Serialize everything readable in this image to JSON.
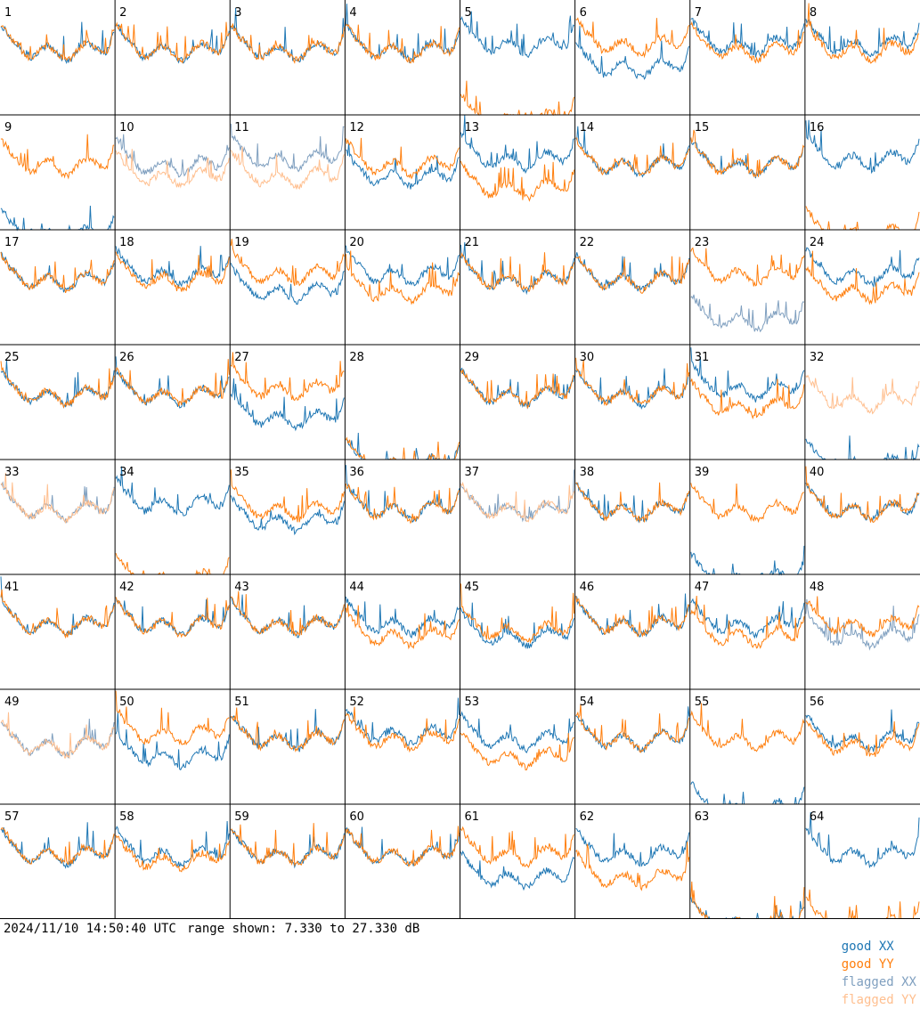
{
  "timestamp": "2024/11/10 14:50:40 UTC",
  "range_text": "range shown: 7.330 to 27.330 dB",
  "legend": [
    {
      "label": "good XX",
      "color": "#1f77b4"
    },
    {
      "label": "good YY",
      "color": "#ff7f0e"
    },
    {
      "label": "flagged XX",
      "color": "#7f9fbf"
    },
    {
      "label": "flagged YY",
      "color": "#ffbf8f"
    }
  ],
  "colors": {
    "good_xx": "#1f77b4",
    "good_yy": "#ff7f0e",
    "flagged_xx": "#7f9fbf",
    "flagged_yy": "#ffbf8f",
    "grid_line": "#000000"
  },
  "chart_data": {
    "type": "line",
    "ylim": [
      7.33,
      27.33
    ],
    "units": "dB",
    "series_names": [
      "good XX",
      "good YY",
      "flagged XX",
      "flagged YY"
    ],
    "panels": [
      {
        "label": "1",
        "xx": "good",
        "yy": "good",
        "xx_level": 20,
        "yy_level": 20
      },
      {
        "label": "2",
        "xx": "good",
        "yy": "good",
        "xx_level": 20,
        "yy_level": 20
      },
      {
        "label": "3",
        "xx": "good",
        "yy": "good",
        "xx_level": 20,
        "yy_level": 20
      },
      {
        "label": "4",
        "xx": "good",
        "yy": "good",
        "xx_level": 20,
        "yy_level": 20
      },
      {
        "label": "5",
        "xx": "good",
        "yy": "good",
        "xx_level": 21,
        "yy_level": 8
      },
      {
        "label": "6",
        "xx": "good",
        "yy": "good",
        "xx_level": 17,
        "yy_level": 21
      },
      {
        "label": "7",
        "xx": "good",
        "yy": "good",
        "xx_level": 21,
        "yy_level": 20
      },
      {
        "label": "8",
        "xx": "good",
        "yy": "good",
        "xx_level": 21,
        "yy_level": 20
      },
      {
        "label": "9",
        "xx": "good",
        "yy": "good",
        "xx_level": 8,
        "yy_level": 20
      },
      {
        "label": "10",
        "xx": "flagged",
        "yy": "flagged",
        "xx_level": 20,
        "yy_level": 18
      },
      {
        "label": "11",
        "xx": "flagged",
        "yy": "flagged",
        "xx_level": 21,
        "yy_level": 18
      },
      {
        "label": "12",
        "xx": "good",
        "yy": "good",
        "xx_level": 18,
        "yy_level": 20
      },
      {
        "label": "13",
        "xx": "good",
        "yy": "good",
        "xx_level": 21,
        "yy_level": 16
      },
      {
        "label": "14",
        "xx": "good",
        "yy": "good",
        "xx_level": 20,
        "yy_level": 20
      },
      {
        "label": "15",
        "xx": "good",
        "yy": "good",
        "xx_level": 20,
        "yy_level": 20
      },
      {
        "label": "16",
        "xx": "good",
        "yy": "good",
        "xx_level": 21,
        "yy_level": 8
      },
      {
        "label": "17",
        "xx": "good",
        "yy": "good",
        "xx_level": 20,
        "yy_level": 20
      },
      {
        "label": "18",
        "xx": "good",
        "yy": "good",
        "xx_level": 21,
        "yy_level": 20
      },
      {
        "label": "19",
        "xx": "good",
        "yy": "good",
        "xx_level": 18,
        "yy_level": 21
      },
      {
        "label": "20",
        "xx": "good",
        "yy": "good",
        "xx_level": 21,
        "yy_level": 18
      },
      {
        "label": "21",
        "xx": "good",
        "yy": "good",
        "xx_level": 20,
        "yy_level": 20
      },
      {
        "label": "22",
        "xx": "good",
        "yy": "good",
        "xx_level": 20,
        "yy_level": 20
      },
      {
        "label": "23",
        "xx": "flagged",
        "yy": "good",
        "xx_level": 13,
        "yy_level": 21
      },
      {
        "label": "24",
        "xx": "good",
        "yy": "good",
        "xx_level": 21,
        "yy_level": 18
      },
      {
        "label": "25",
        "xx": "good",
        "yy": "good",
        "xx_level": 20,
        "yy_level": 20
      },
      {
        "label": "26",
        "xx": "good",
        "yy": "good",
        "xx_level": 20,
        "yy_level": 20
      },
      {
        "label": "27",
        "xx": "good",
        "yy": "good",
        "xx_level": 16,
        "yy_level": 21
      },
      {
        "label": "28",
        "xx": "good",
        "yy": "good",
        "xx_level": 8,
        "yy_level": 8
      },
      {
        "label": "29",
        "xx": "good",
        "yy": "good",
        "xx_level": 20,
        "yy_level": 20
      },
      {
        "label": "30",
        "xx": "good",
        "yy": "good",
        "xx_level": 20,
        "yy_level": 20
      },
      {
        "label": "31",
        "xx": "good",
        "yy": "good",
        "xx_level": 21,
        "yy_level": 18
      },
      {
        "label": "32",
        "xx": "good",
        "yy": "flagged",
        "xx_level": 8,
        "yy_level": 19
      },
      {
        "label": "33",
        "xx": "flagged",
        "yy": "flagged",
        "xx_level": 20,
        "yy_level": 20
      },
      {
        "label": "34",
        "xx": "good",
        "yy": "good",
        "xx_level": 21,
        "yy_level": 8
      },
      {
        "label": "35",
        "xx": "good",
        "yy": "good",
        "xx_level": 18,
        "yy_level": 20
      },
      {
        "label": "36",
        "xx": "good",
        "yy": "good",
        "xx_level": 20,
        "yy_level": 20
      },
      {
        "label": "37",
        "xx": "flagged",
        "yy": "flagged",
        "xx_level": 20,
        "yy_level": 20
      },
      {
        "label": "38",
        "xx": "good",
        "yy": "good",
        "xx_level": 20,
        "yy_level": 20
      },
      {
        "label": "39",
        "xx": "good",
        "yy": "good",
        "xx_level": 8,
        "yy_level": 20
      },
      {
        "label": "40",
        "xx": "good",
        "yy": "good",
        "xx_level": 20,
        "yy_level": 20
      },
      {
        "label": "41",
        "xx": "good",
        "yy": "good",
        "xx_level": 20,
        "yy_level": 20
      },
      {
        "label": "42",
        "xx": "good",
        "yy": "good",
        "xx_level": 20,
        "yy_level": 20
      },
      {
        "label": "43",
        "xx": "good",
        "yy": "good",
        "xx_level": 20,
        "yy_level": 20
      },
      {
        "label": "44",
        "xx": "good",
        "yy": "good",
        "xx_level": 20,
        "yy_level": 18
      },
      {
        "label": "45",
        "xx": "good",
        "yy": "good",
        "xx_level": 18,
        "yy_level": 19
      },
      {
        "label": "46",
        "xx": "good",
        "yy": "good",
        "xx_level": 20,
        "yy_level": 20
      },
      {
        "label": "47",
        "xx": "good",
        "yy": "good",
        "xx_level": 20,
        "yy_level": 18
      },
      {
        "label": "48",
        "xx": "flagged",
        "yy": "good",
        "xx_level": 18,
        "yy_level": 20
      },
      {
        "label": "49",
        "xx": "flagged",
        "yy": "flagged",
        "xx_level": 19,
        "yy_level": 19
      },
      {
        "label": "50",
        "xx": "good",
        "yy": "good",
        "xx_level": 17,
        "yy_level": 21
      },
      {
        "label": "51",
        "xx": "good",
        "yy": "good",
        "xx_level": 20,
        "yy_level": 20
      },
      {
        "label": "52",
        "xx": "good",
        "yy": "good",
        "xx_level": 21,
        "yy_level": 20
      },
      {
        "label": "53",
        "xx": "good",
        "yy": "good",
        "xx_level": 20,
        "yy_level": 17
      },
      {
        "label": "54",
        "xx": "good",
        "yy": "good",
        "xx_level": 20,
        "yy_level": 20
      },
      {
        "label": "55",
        "xx": "good",
        "yy": "good",
        "xx_level": 8,
        "yy_level": 20
      },
      {
        "label": "56",
        "xx": "good",
        "yy": "good",
        "xx_level": 20,
        "yy_level": 19
      },
      {
        "label": "57",
        "xx": "good",
        "yy": "good",
        "xx_level": 20,
        "yy_level": 20
      },
      {
        "label": "58",
        "xx": "good",
        "yy": "good",
        "xx_level": 20,
        "yy_level": 19
      },
      {
        "label": "59",
        "xx": "good",
        "yy": "good",
        "xx_level": 20,
        "yy_level": 20
      },
      {
        "label": "60",
        "xx": "good",
        "yy": "good",
        "xx_level": 20,
        "yy_level": 20
      },
      {
        "label": "61",
        "xx": "good",
        "yy": "good",
        "xx_level": 16,
        "yy_level": 20
      },
      {
        "label": "62",
        "xx": "good",
        "yy": "good",
        "xx_level": 20,
        "yy_level": 16
      },
      {
        "label": "63",
        "xx": "good",
        "yy": "good",
        "xx_level": 8,
        "yy_level": 8
      },
      {
        "label": "64",
        "xx": "good",
        "yy": "good",
        "xx_level": 20,
        "yy_level": 8
      }
    ]
  }
}
